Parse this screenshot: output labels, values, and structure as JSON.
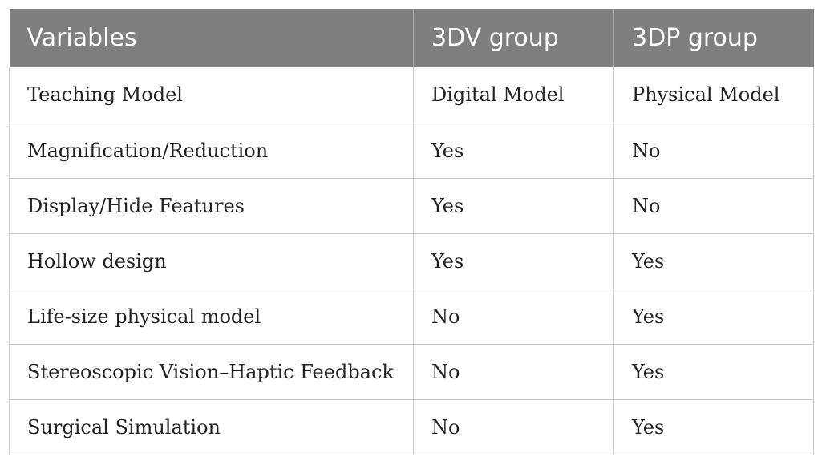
{
  "table": {
    "headers": [
      "Variables",
      "3DV group",
      "3DP group"
    ],
    "rows": [
      [
        "Teaching Model",
        "Digital Model",
        "Physical Model"
      ],
      [
        "Magnification/Reduction",
        "Yes",
        "No"
      ],
      [
        "Display/Hide Features",
        "Yes",
        "No"
      ],
      [
        "Hollow design",
        "Yes",
        "Yes"
      ],
      [
        "Life-size physical model",
        "No",
        "Yes"
      ],
      [
        "Stereoscopic Vision–Haptic Feedback",
        "No",
        "Yes"
      ],
      [
        "Surgical Simulation",
        "No",
        "Yes"
      ]
    ],
    "colors": {
      "header_bg": "#7f7f7f",
      "header_text": "#ffffff",
      "grid": "#c9c9c9"
    }
  }
}
